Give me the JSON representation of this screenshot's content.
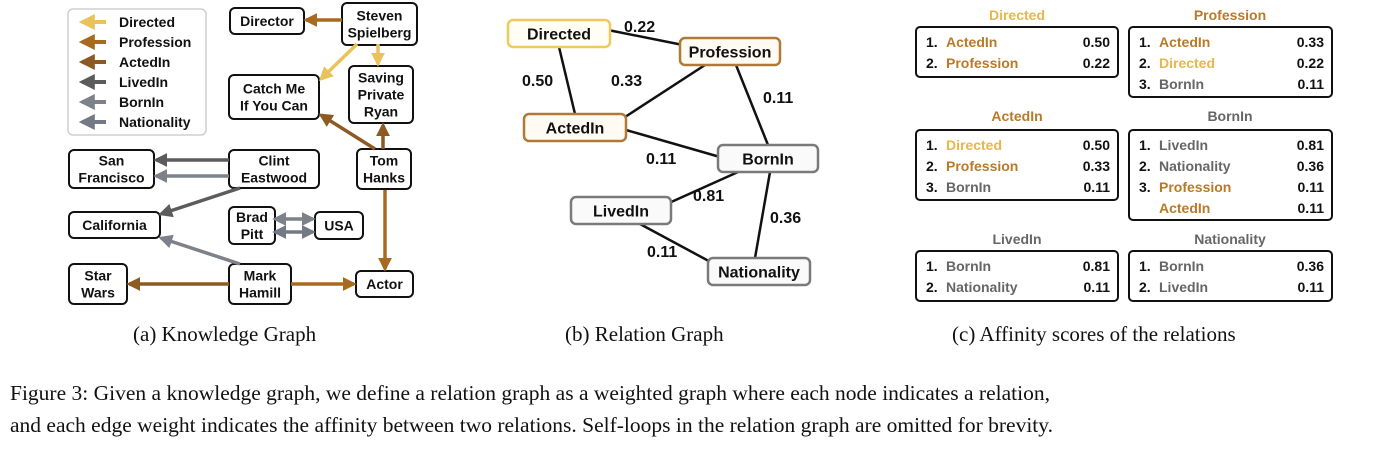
{
  "colors": {
    "directed": "#e9c35a",
    "profession": "#a86a1f",
    "actedin": "#8e5a24",
    "livedin": "#5c5c5c",
    "bornin": "#7d8189",
    "nationality": "#737985",
    "orange_text": "#b97a28",
    "yellow_text": "#e8b64b",
    "gray_text": "#666666"
  },
  "knowledge_graph": {
    "legend": [
      "Directed",
      "Profession",
      "ActedIn",
      "LivedIn",
      "BornIn",
      "Nationality"
    ],
    "nodes": {
      "director": [
        "Director"
      ],
      "spielberg": [
        "Steven",
        "Spielberg"
      ],
      "catchme": [
        "Catch Me",
        "If You Can"
      ],
      "ryan": [
        "Saving",
        "Private",
        "Ryan"
      ],
      "sanfran": [
        "San",
        "Francisco"
      ],
      "eastwood": [
        "Clint",
        "Eastwood"
      ],
      "hanks": [
        "Tom",
        "Hanks"
      ],
      "california": [
        "California"
      ],
      "pitt": [
        "Brad",
        "Pitt"
      ],
      "usa": [
        "USA"
      ],
      "starwars": [
        "Star",
        "Wars"
      ],
      "hamill": [
        "Mark",
        "Hamill"
      ],
      "actor": [
        "Actor"
      ]
    },
    "caption": "(a) Knowledge Graph"
  },
  "relation_graph": {
    "nodes": [
      "Directed",
      "Profession",
      "ActedIn",
      "BornIn",
      "LivedIn",
      "Nationality"
    ],
    "edges": [
      {
        "a": "Directed",
        "b": "Profession",
        "weight": "0.22"
      },
      {
        "a": "Directed",
        "b": "ActedIn",
        "weight": "0.50"
      },
      {
        "a": "Profession",
        "b": "ActedIn",
        "weight": "0.33"
      },
      {
        "a": "Profession",
        "b": "BornIn",
        "weight": "0.11"
      },
      {
        "a": "ActedIn",
        "b": "BornIn",
        "weight": "0.11"
      },
      {
        "a": "LivedIn",
        "b": "BornIn",
        "weight": "0.81"
      },
      {
        "a": "BornIn",
        "b": "Nationality",
        "weight": "0.36"
      },
      {
        "a": "LivedIn",
        "b": "Nationality",
        "weight": "0.11"
      }
    ],
    "caption": "(b) Relation Graph"
  },
  "affinity": {
    "tables": [
      {
        "title": "Directed",
        "rows": [
          {
            "rank": "1.",
            "name": "ActedIn",
            "score": "0.50"
          },
          {
            "rank": "2.",
            "name": "Profession",
            "score": "0.22"
          }
        ]
      },
      {
        "title": "Profession",
        "rows": [
          {
            "rank": "1.",
            "name": "ActedIn",
            "score": "0.33"
          },
          {
            "rank": "2.",
            "name": "Directed",
            "score": "0.22"
          },
          {
            "rank": "3.",
            "name": "BornIn",
            "score": "0.11"
          }
        ]
      },
      {
        "title": "ActedIn",
        "rows": [
          {
            "rank": "1.",
            "name": "Directed",
            "score": "0.50"
          },
          {
            "rank": "2.",
            "name": "Profession",
            "score": "0.33"
          },
          {
            "rank": "3.",
            "name": "BornIn",
            "score": "0.11"
          }
        ]
      },
      {
        "title": "BornIn",
        "rows": [
          {
            "rank": "1.",
            "name": "LivedIn",
            "score": "0.81"
          },
          {
            "rank": "2.",
            "name": "Nationality",
            "score": "0.36"
          },
          {
            "rank": "3.",
            "name": "Profession",
            "score": "0.11"
          },
          {
            "rank": "",
            "name": "ActedIn",
            "score": "0.11"
          }
        ]
      },
      {
        "title": "LivedIn",
        "rows": [
          {
            "rank": "1.",
            "name": "BornIn",
            "score": "0.81"
          },
          {
            "rank": "2.",
            "name": "Nationality",
            "score": "0.11"
          }
        ]
      },
      {
        "title": "Nationality",
        "rows": [
          {
            "rank": "1.",
            "name": "BornIn",
            "score": "0.36"
          },
          {
            "rank": "2.",
            "name": "LivedIn",
            "score": "0.11"
          }
        ]
      }
    ],
    "caption": "(c) Affinity scores of the relations"
  },
  "figure_caption": {
    "line1": "Figure 3: Given a knowledge graph, we define a relation graph as a weighted graph where each node indicates a relation,",
    "line2": "and each edge weight indicates the affinity between two relations. Self-loops in the relation graph are omitted for brevity."
  }
}
